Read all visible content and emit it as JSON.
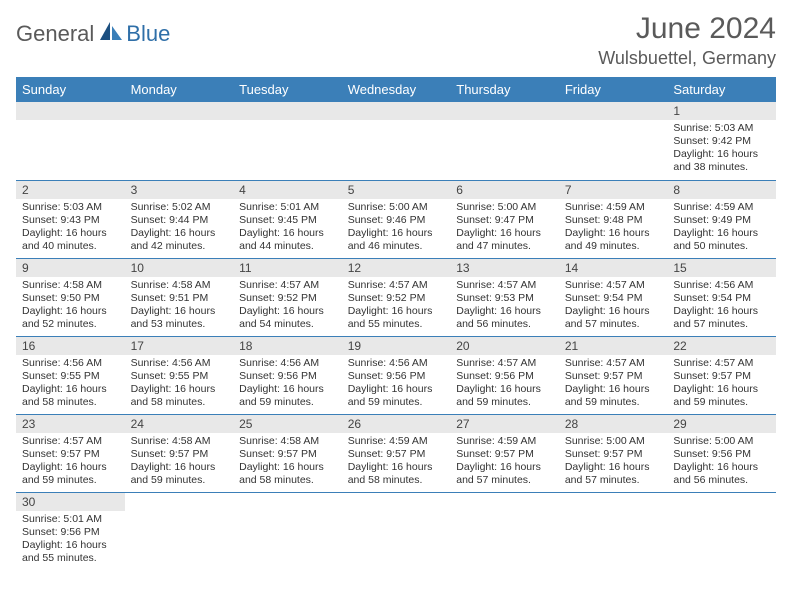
{
  "logo": {
    "text1": "General",
    "text2": "Blue"
  },
  "title": "June 2024",
  "location": "Wulsbuettel, Germany",
  "colors": {
    "header_bg": "#3b7fb8",
    "header_fg": "#ffffff",
    "daynum_bg": "#e8e8e8",
    "row_border": "#3b7fb8",
    "logo_gray": "#5a5a5a",
    "logo_blue": "#2f6fa8"
  },
  "weekdays": [
    "Sunday",
    "Monday",
    "Tuesday",
    "Wednesday",
    "Thursday",
    "Friday",
    "Saturday"
  ],
  "weeks": [
    [
      null,
      null,
      null,
      null,
      null,
      null,
      {
        "n": "1",
        "sr": "5:03 AM",
        "ss": "9:42 PM",
        "dl": "16 hours and 38 minutes."
      }
    ],
    [
      {
        "n": "2",
        "sr": "5:03 AM",
        "ss": "9:43 PM",
        "dl": "16 hours and 40 minutes."
      },
      {
        "n": "3",
        "sr": "5:02 AM",
        "ss": "9:44 PM",
        "dl": "16 hours and 42 minutes."
      },
      {
        "n": "4",
        "sr": "5:01 AM",
        "ss": "9:45 PM",
        "dl": "16 hours and 44 minutes."
      },
      {
        "n": "5",
        "sr": "5:00 AM",
        "ss": "9:46 PM",
        "dl": "16 hours and 46 minutes."
      },
      {
        "n": "6",
        "sr": "5:00 AM",
        "ss": "9:47 PM",
        "dl": "16 hours and 47 minutes."
      },
      {
        "n": "7",
        "sr": "4:59 AM",
        "ss": "9:48 PM",
        "dl": "16 hours and 49 minutes."
      },
      {
        "n": "8",
        "sr": "4:59 AM",
        "ss": "9:49 PM",
        "dl": "16 hours and 50 minutes."
      }
    ],
    [
      {
        "n": "9",
        "sr": "4:58 AM",
        "ss": "9:50 PM",
        "dl": "16 hours and 52 minutes."
      },
      {
        "n": "10",
        "sr": "4:58 AM",
        "ss": "9:51 PM",
        "dl": "16 hours and 53 minutes."
      },
      {
        "n": "11",
        "sr": "4:57 AM",
        "ss": "9:52 PM",
        "dl": "16 hours and 54 minutes."
      },
      {
        "n": "12",
        "sr": "4:57 AM",
        "ss": "9:52 PM",
        "dl": "16 hours and 55 minutes."
      },
      {
        "n": "13",
        "sr": "4:57 AM",
        "ss": "9:53 PM",
        "dl": "16 hours and 56 minutes."
      },
      {
        "n": "14",
        "sr": "4:57 AM",
        "ss": "9:54 PM",
        "dl": "16 hours and 57 minutes."
      },
      {
        "n": "15",
        "sr": "4:56 AM",
        "ss": "9:54 PM",
        "dl": "16 hours and 57 minutes."
      }
    ],
    [
      {
        "n": "16",
        "sr": "4:56 AM",
        "ss": "9:55 PM",
        "dl": "16 hours and 58 minutes."
      },
      {
        "n": "17",
        "sr": "4:56 AM",
        "ss": "9:55 PM",
        "dl": "16 hours and 58 minutes."
      },
      {
        "n": "18",
        "sr": "4:56 AM",
        "ss": "9:56 PM",
        "dl": "16 hours and 59 minutes."
      },
      {
        "n": "19",
        "sr": "4:56 AM",
        "ss": "9:56 PM",
        "dl": "16 hours and 59 minutes."
      },
      {
        "n": "20",
        "sr": "4:57 AM",
        "ss": "9:56 PM",
        "dl": "16 hours and 59 minutes."
      },
      {
        "n": "21",
        "sr": "4:57 AM",
        "ss": "9:57 PM",
        "dl": "16 hours and 59 minutes."
      },
      {
        "n": "22",
        "sr": "4:57 AM",
        "ss": "9:57 PM",
        "dl": "16 hours and 59 minutes."
      }
    ],
    [
      {
        "n": "23",
        "sr": "4:57 AM",
        "ss": "9:57 PM",
        "dl": "16 hours and 59 minutes."
      },
      {
        "n": "24",
        "sr": "4:58 AM",
        "ss": "9:57 PM",
        "dl": "16 hours and 59 minutes."
      },
      {
        "n": "25",
        "sr": "4:58 AM",
        "ss": "9:57 PM",
        "dl": "16 hours and 58 minutes."
      },
      {
        "n": "26",
        "sr": "4:59 AM",
        "ss": "9:57 PM",
        "dl": "16 hours and 58 minutes."
      },
      {
        "n": "27",
        "sr": "4:59 AM",
        "ss": "9:57 PM",
        "dl": "16 hours and 57 minutes."
      },
      {
        "n": "28",
        "sr": "5:00 AM",
        "ss": "9:57 PM",
        "dl": "16 hours and 57 minutes."
      },
      {
        "n": "29",
        "sr": "5:00 AM",
        "ss": "9:56 PM",
        "dl": "16 hours and 56 minutes."
      }
    ],
    [
      {
        "n": "30",
        "sr": "5:01 AM",
        "ss": "9:56 PM",
        "dl": "16 hours and 55 minutes."
      },
      null,
      null,
      null,
      null,
      null,
      null
    ]
  ],
  "labels": {
    "sunrise": "Sunrise:",
    "sunset": "Sunset:",
    "daylight": "Daylight:"
  }
}
